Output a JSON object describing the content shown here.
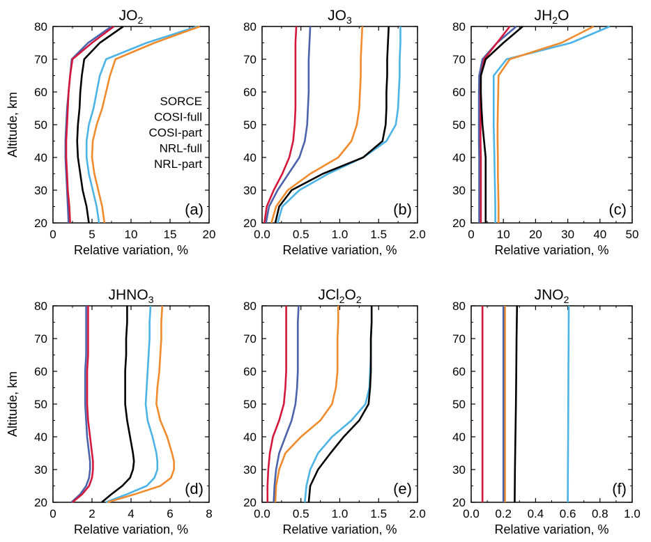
{
  "figure": {
    "xlabel": "Relative variation, %",
    "ylabel": "Altitude, km"
  },
  "legend": {
    "placement": "panel (a), right side",
    "entries": [
      {
        "label": "SORCE",
        "color": "#000000"
      },
      {
        "label": "COSI-full",
        "color": "#4bb3e6"
      },
      {
        "label": "COSI-part",
        "color": "#4a63aa"
      },
      {
        "label": "NRL-full",
        "color": "#f08a2a"
      },
      {
        "label": "NRL-part",
        "color": "#d4173b"
      }
    ]
  },
  "chart_data": [
    {
      "type": "line",
      "title": "JO2",
      "title_base": "JO",
      "title_sub": "2",
      "panel_label": "(a)",
      "xlabel": "Relative variation, %",
      "ylabel": "Altitude, km",
      "xlim": [
        0,
        20
      ],
      "ylim": [
        20,
        80
      ],
      "xticks": [
        "0",
        "5",
        "10",
        "15",
        "20"
      ],
      "yticks": [
        "20",
        "30",
        "40",
        "50",
        "60",
        "70",
        "80"
      ],
      "y": [
        20,
        25,
        30,
        35,
        40,
        45,
        50,
        55,
        60,
        65,
        70,
        75,
        80
      ],
      "series": [
        {
          "name": "SORCE",
          "color": "#000000",
          "x": [
            4.6,
            4.3,
            3.8,
            3.5,
            3.2,
            3.1,
            3.2,
            3.4,
            3.5,
            3.7,
            4.0,
            6.0,
            9.0
          ]
        },
        {
          "name": "COSI-full",
          "color": "#4bb3e6",
          "x": [
            5.9,
            5.6,
            5.1,
            4.6,
            4.3,
            4.3,
            4.6,
            5.2,
            5.6,
            6.0,
            6.8,
            12.0,
            18.5
          ]
        },
        {
          "name": "COSI-part",
          "color": "#4a63aa",
          "x": [
            2.0,
            1.9,
            1.8,
            1.7,
            1.6,
            1.6,
            1.7,
            1.8,
            2.0,
            2.2,
            2.4,
            4.5,
            7.5
          ]
        },
        {
          "name": "NRL-full",
          "color": "#f08a2a",
          "x": [
            6.6,
            6.3,
            5.8,
            5.3,
            5.0,
            5.1,
            5.6,
            6.3,
            6.8,
            7.3,
            8.0,
            13.0,
            18.8
          ]
        },
        {
          "name": "NRL-part",
          "color": "#d4173b",
          "x": [
            2.2,
            2.1,
            1.9,
            1.8,
            1.7,
            1.7,
            1.8,
            1.9,
            2.0,
            2.2,
            2.5,
            5.0,
            7.8
          ]
        }
      ]
    },
    {
      "type": "line",
      "title": "JO3",
      "title_base": "JO",
      "title_sub": "3",
      "panel_label": "(b)",
      "xlabel": "Relative variation, %",
      "ylabel": "",
      "xlim": [
        0,
        2.0
      ],
      "ylim": [
        20,
        80
      ],
      "xticks": [
        "0.0",
        "0.5",
        "1.0",
        "1.5",
        "2.0"
      ],
      "yticks": [
        "20",
        "30",
        "40",
        "50",
        "60",
        "70",
        "80"
      ],
      "y": [
        20,
        25,
        30,
        35,
        40,
        45,
        50,
        55,
        60,
        65,
        70,
        75,
        80
      ],
      "series": [
        {
          "name": "SORCE",
          "color": "#000000",
          "x": [
            0.17,
            0.22,
            0.38,
            0.78,
            1.3,
            1.55,
            1.59,
            1.6,
            1.6,
            1.61,
            1.61,
            1.62,
            1.63
          ]
        },
        {
          "name": "COSI-full",
          "color": "#4bb3e6",
          "x": [
            0.2,
            0.26,
            0.48,
            0.85,
            1.3,
            1.6,
            1.72,
            1.75,
            1.76,
            1.77,
            1.77,
            1.78,
            1.78
          ]
        },
        {
          "name": "COSI-part",
          "color": "#4a63aa",
          "x": [
            0.05,
            0.09,
            0.2,
            0.34,
            0.48,
            0.55,
            0.58,
            0.59,
            0.6,
            0.6,
            0.6,
            0.61,
            0.62
          ]
        },
        {
          "name": "NRL-full",
          "color": "#f08a2a",
          "x": [
            0.12,
            0.18,
            0.33,
            0.62,
            0.98,
            1.15,
            1.22,
            1.25,
            1.26,
            1.27,
            1.27,
            1.28,
            1.29
          ]
        },
        {
          "name": "NRL-part",
          "color": "#d4173b",
          "x": [
            0.03,
            0.06,
            0.15,
            0.26,
            0.35,
            0.4,
            0.42,
            0.43,
            0.43,
            0.43,
            0.43,
            0.43,
            0.44
          ]
        }
      ]
    },
    {
      "type": "line",
      "title": "JH2O",
      "title_base": "JH",
      "title_sub": "2",
      "title_after": "O",
      "panel_label": "(c)",
      "xlabel": "Relative variation, %",
      "ylabel": "",
      "xlim": [
        0,
        50
      ],
      "ylim": [
        20,
        80
      ],
      "xticks": [
        "0",
        "10",
        "20",
        "30",
        "40",
        "50"
      ],
      "yticks": [
        "20",
        "30",
        "40",
        "50",
        "60",
        "70",
        "80"
      ],
      "y": [
        20,
        25,
        30,
        35,
        40,
        45,
        50,
        55,
        60,
        65,
        70,
        75,
        80
      ],
      "series": [
        {
          "name": "SORCE",
          "color": "#000000",
          "x": [
            4.5,
            4.5,
            4.5,
            4.5,
            4.5,
            4.0,
            3.5,
            3.2,
            3.0,
            3.0,
            4.5,
            10.0,
            16.0
          ]
        },
        {
          "name": "COSI-full",
          "color": "#4bb3e6",
          "x": [
            7.5,
            7.5,
            7.4,
            7.3,
            7.2,
            7.1,
            7.0,
            7.0,
            7.0,
            7.0,
            11.0,
            31.0,
            43.0
          ]
        },
        {
          "name": "COSI-part",
          "color": "#4a63aa",
          "x": [
            2.5,
            2.5,
            2.5,
            2.5,
            2.5,
            2.4,
            2.4,
            2.4,
            2.4,
            2.5,
            3.5,
            8.0,
            14.0
          ]
        },
        {
          "name": "NRL-full",
          "color": "#f08a2a",
          "x": [
            8.5,
            8.5,
            8.4,
            8.3,
            8.3,
            8.2,
            8.2,
            8.3,
            8.4,
            8.5,
            12.0,
            28.0,
            38.0
          ]
        },
        {
          "name": "NRL-part",
          "color": "#d4173b",
          "x": [
            3.0,
            3.0,
            3.0,
            3.0,
            3.0,
            2.9,
            2.9,
            2.9,
            2.9,
            3.0,
            4.0,
            8.0,
            12.0
          ]
        }
      ]
    },
    {
      "type": "line",
      "title": "JHNO3",
      "title_base": "JHNO",
      "title_sub": "3",
      "panel_label": "(d)",
      "xlabel": "Relative variation, %",
      "ylabel": "Altitude, km",
      "xlim": [
        0,
        8
      ],
      "ylim": [
        20,
        80
      ],
      "xticks": [
        "0",
        "2",
        "4",
        "6",
        "8"
      ],
      "yticks": [
        "20",
        "30",
        "40",
        "50",
        "60",
        "70",
        "80"
      ],
      "y": [
        20,
        22.5,
        25,
        27.5,
        30,
        32.5,
        35,
        40,
        45,
        50,
        55,
        60,
        65,
        70,
        75,
        80
      ],
      "series": [
        {
          "name": "SORCE",
          "color": "#000000",
          "x": [
            2.5,
            3.0,
            3.55,
            3.95,
            4.1,
            4.15,
            4.1,
            3.95,
            3.8,
            3.7,
            3.7,
            3.7,
            3.75,
            3.75,
            3.8,
            3.8
          ]
        },
        {
          "name": "COSI-full",
          "color": "#4bb3e6",
          "x": [
            2.7,
            3.8,
            4.8,
            5.2,
            5.35,
            5.35,
            5.3,
            5.1,
            4.85,
            4.75,
            4.8,
            4.85,
            4.9,
            4.95,
            4.95,
            5.0
          ]
        },
        {
          "name": "COSI-part",
          "color": "#4a63aa",
          "x": [
            0.95,
            1.4,
            1.7,
            1.85,
            1.9,
            1.9,
            1.85,
            1.75,
            1.7,
            1.65,
            1.65,
            1.65,
            1.7,
            1.7,
            1.7,
            1.7
          ]
        },
        {
          "name": "NRL-full",
          "color": "#f08a2a",
          "x": [
            2.8,
            4.2,
            5.5,
            6.05,
            6.2,
            6.2,
            6.1,
            5.85,
            5.5,
            5.3,
            5.35,
            5.45,
            5.5,
            5.55,
            5.55,
            5.6
          ]
        },
        {
          "name": "NRL-part",
          "color": "#d4173b",
          "x": [
            1.0,
            1.5,
            1.85,
            2.0,
            2.05,
            2.05,
            2.0,
            1.9,
            1.8,
            1.75,
            1.75,
            1.75,
            1.8,
            1.8,
            1.8,
            1.8
          ]
        }
      ]
    },
    {
      "type": "line",
      "title": "JCl2O2",
      "title_base": "JCl",
      "title_sub": "2",
      "title_after": "O",
      "title_sub2": "2",
      "panel_label": "(e)",
      "xlabel": "Relative variation, %",
      "ylabel": "",
      "xlim": [
        0,
        2.0
      ],
      "ylim": [
        20,
        80
      ],
      "xticks": [
        "0.0",
        "0.5",
        "1.0",
        "1.5",
        "2.0"
      ],
      "yticks": [
        "20",
        "30",
        "40",
        "50",
        "60",
        "70",
        "80"
      ],
      "y": [
        20,
        25,
        30,
        35,
        40,
        45,
        50,
        55,
        60,
        65,
        70,
        75,
        80
      ],
      "series": [
        {
          "name": "SORCE",
          "color": "#000000",
          "x": [
            0.6,
            0.62,
            0.72,
            0.88,
            1.05,
            1.25,
            1.37,
            1.39,
            1.4,
            1.4,
            1.4,
            1.41,
            1.41
          ]
        },
        {
          "name": "COSI-full",
          "color": "#4bb3e6",
          "x": [
            0.55,
            0.57,
            0.62,
            0.72,
            0.9,
            1.15,
            1.33,
            1.38,
            1.39,
            1.4,
            1.4,
            1.41,
            1.41
          ]
        },
        {
          "name": "COSI-part",
          "color": "#4a63aa",
          "x": [
            0.15,
            0.16,
            0.18,
            0.22,
            0.3,
            0.38,
            0.43,
            0.45,
            0.46,
            0.46,
            0.46,
            0.46,
            0.47
          ]
        },
        {
          "name": "NRL-full",
          "color": "#f08a2a",
          "x": [
            0.17,
            0.18,
            0.22,
            0.3,
            0.5,
            0.75,
            0.9,
            0.95,
            0.97,
            0.97,
            0.97,
            0.98,
            0.98
          ]
        },
        {
          "name": "NRL-part",
          "color": "#d4173b",
          "x": [
            0.07,
            0.07,
            0.08,
            0.1,
            0.14,
            0.22,
            0.28,
            0.3,
            0.31,
            0.31,
            0.31,
            0.31,
            0.31
          ]
        }
      ]
    },
    {
      "type": "line",
      "title": "JNO2",
      "title_base": "JNO",
      "title_sub": "2",
      "panel_label": "(f)",
      "xlabel": "Relative variation, %",
      "ylabel": "",
      "xlim": [
        0,
        1.0
      ],
      "ylim": [
        20,
        80
      ],
      "xticks": [
        "0.0",
        "0.2",
        "0.4",
        "0.6",
        "0.8",
        "1.0"
      ],
      "yticks": [
        "20",
        "30",
        "40",
        "50",
        "60",
        "70",
        "80"
      ],
      "y": [
        20,
        30,
        40,
        50,
        60,
        70,
        80
      ],
      "series": [
        {
          "name": "SORCE",
          "color": "#000000",
          "x": [
            0.27,
            0.272,
            0.275,
            0.278,
            0.28,
            0.282,
            0.285
          ]
        },
        {
          "name": "COSI-full",
          "color": "#4bb3e6",
          "x": [
            0.6,
            0.601,
            0.602,
            0.603,
            0.604,
            0.605,
            0.606
          ]
        },
        {
          "name": "COSI-part",
          "color": "#4a63aa",
          "x": [
            0.2,
            0.2,
            0.2,
            0.2,
            0.2,
            0.2,
            0.2
          ]
        },
        {
          "name": "NRL-full",
          "color": "#f08a2a",
          "x": [
            0.21,
            0.21,
            0.21,
            0.21,
            0.21,
            0.21,
            0.21
          ]
        },
        {
          "name": "NRL-part",
          "color": "#d4173b",
          "x": [
            0.07,
            0.07,
            0.07,
            0.07,
            0.07,
            0.07,
            0.07
          ]
        }
      ]
    }
  ]
}
